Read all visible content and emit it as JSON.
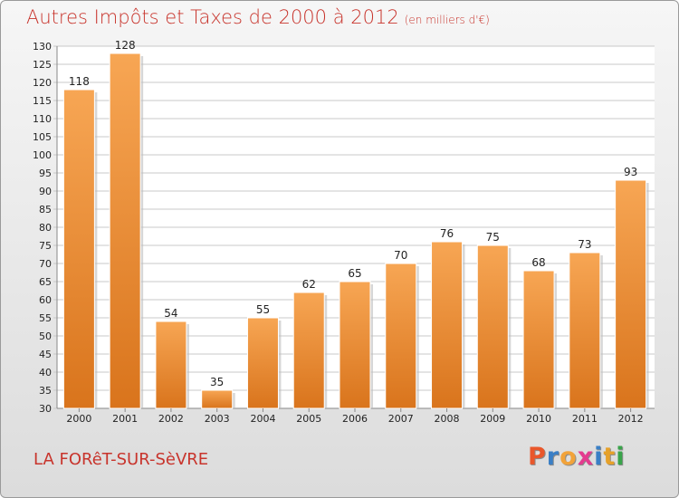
{
  "header": {
    "title": "Autres Impôts et Taxes de 2000 à 2012",
    "subtitle": "(en milliers d'€)"
  },
  "footer": {
    "city": "LA FORêT-SUR-SèVRE",
    "logo": "Proxiti",
    "logo_colors": [
      "#e9572b",
      "#3a7fc6",
      "#f2a33a",
      "#e43b8f",
      "#3a7fc6",
      "#e6a12a",
      "#39a44a"
    ]
  },
  "colors": {
    "bar_light": "#f7a654",
    "bar_dark": "#d9741c",
    "title": "#c8342c",
    "grid": "#c9c9c9"
  },
  "chart_data": {
    "type": "bar",
    "categories": [
      "2000",
      "2001",
      "2002",
      "2003",
      "2004",
      "2005",
      "2006",
      "2007",
      "2008",
      "2009",
      "2010",
      "2011",
      "2012"
    ],
    "values": [
      118,
      128,
      54,
      35,
      55,
      62,
      65,
      70,
      76,
      75,
      68,
      73,
      93
    ],
    "ylim": [
      30,
      130
    ],
    "ytick_step": 5,
    "grid": true,
    "data_labels": true
  }
}
